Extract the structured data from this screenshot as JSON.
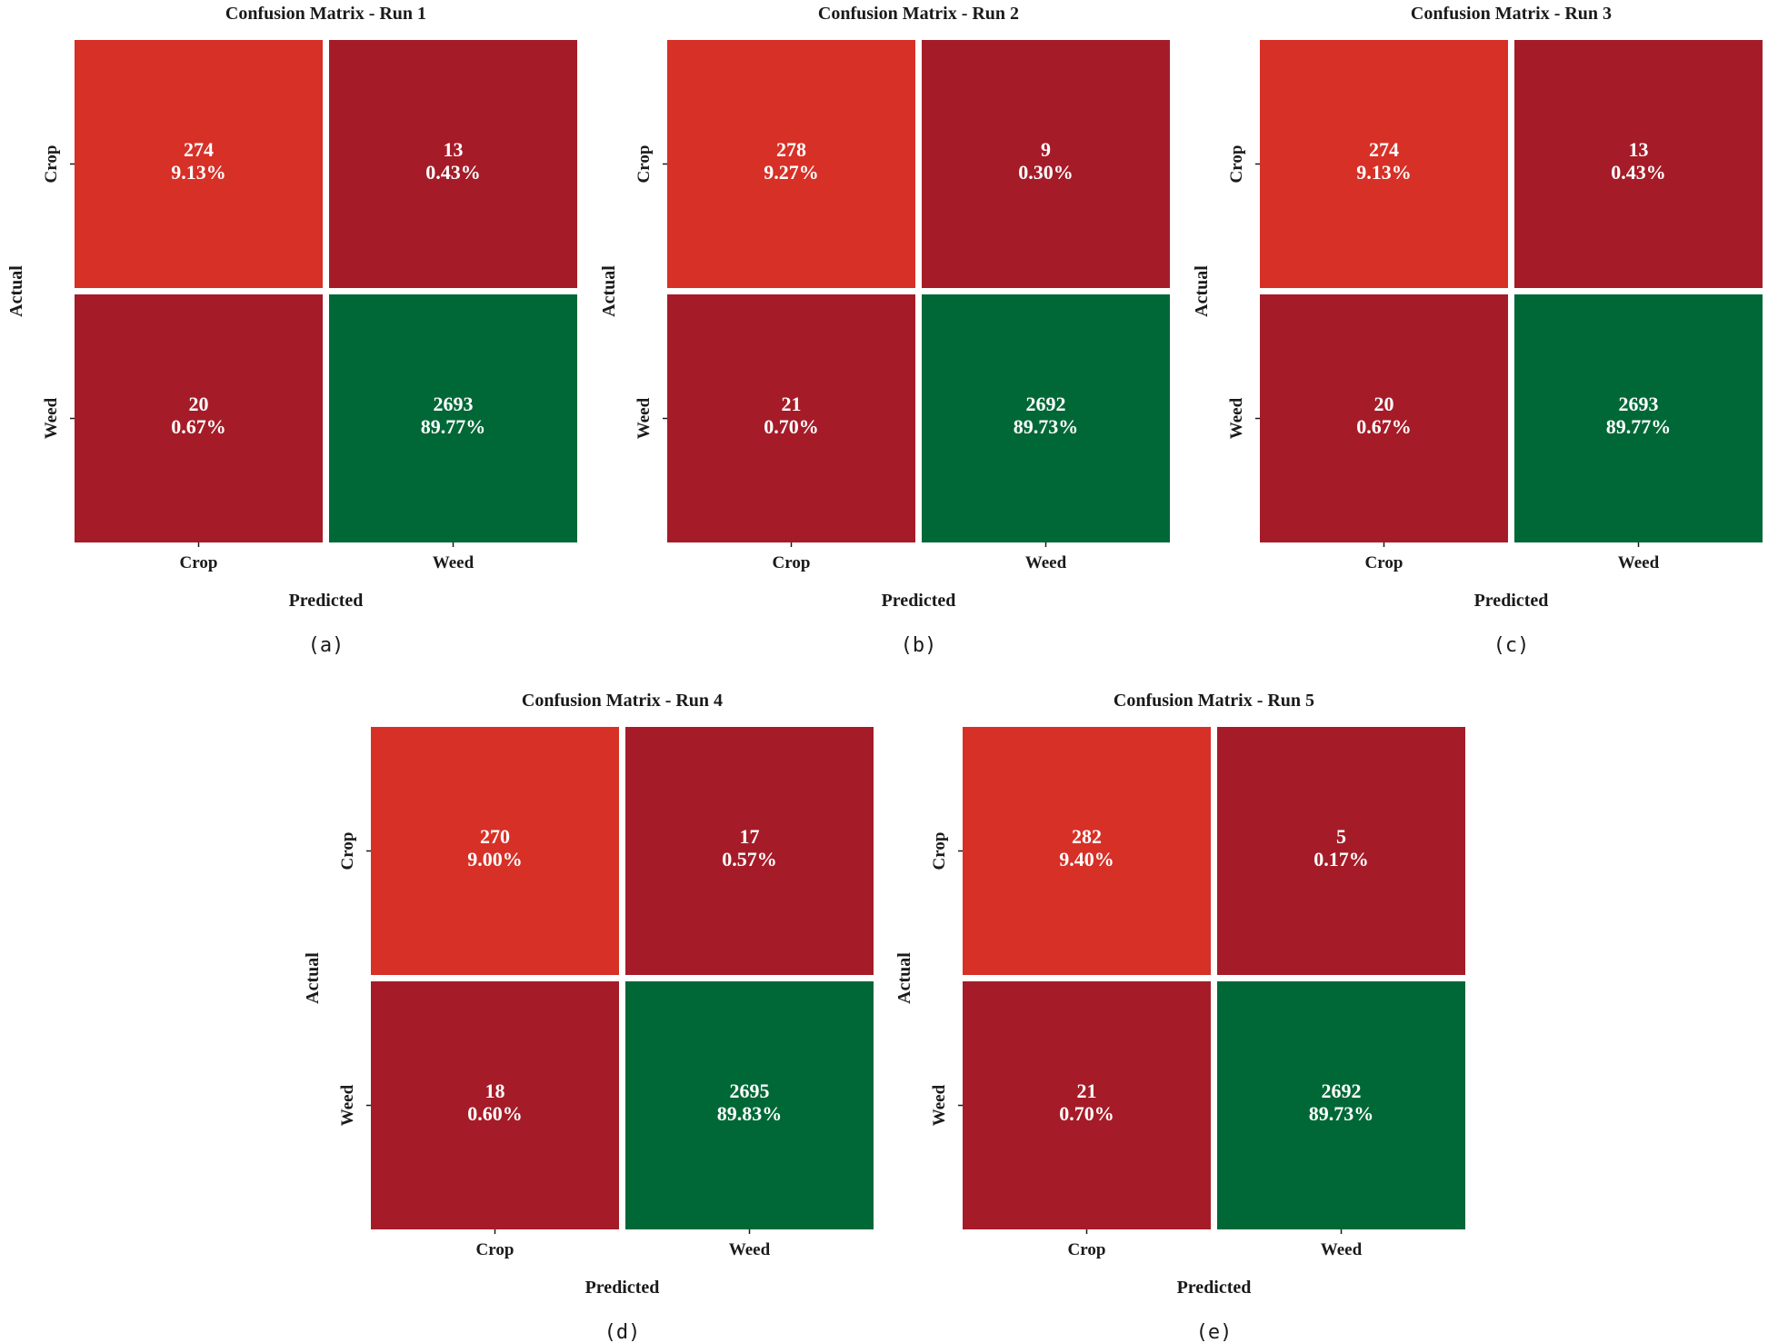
{
  "colors": {
    "correct_crop": "#d73027",
    "misclassified": "#a51c28",
    "correct_weed": "#006837",
    "cell_text": "#ffffff",
    "tick": "#1a1a1a"
  },
  "chart_data": [
    {
      "type": "heatmap",
      "caption": "(a)",
      "title": "Confusion Matrix - Run 1",
      "xlabel": "Predicted",
      "ylabel": "Actual",
      "x_categories": [
        "Crop",
        "Weed"
      ],
      "y_categories": [
        "Crop",
        "Weed"
      ],
      "values": [
        [
          274,
          13
        ],
        [
          20,
          2693
        ]
      ],
      "percent_labels": [
        [
          "9.13%",
          "0.43%"
        ],
        [
          "0.67%",
          "89.77%"
        ]
      ]
    },
    {
      "type": "heatmap",
      "caption": "(b)",
      "title": "Confusion Matrix - Run 2",
      "xlabel": "Predicted",
      "ylabel": "Actual",
      "x_categories": [
        "Crop",
        "Weed"
      ],
      "y_categories": [
        "Crop",
        "Weed"
      ],
      "values": [
        [
          278,
          9
        ],
        [
          21,
          2692
        ]
      ],
      "percent_labels": [
        [
          "9.27%",
          "0.30%"
        ],
        [
          "0.70%",
          "89.73%"
        ]
      ]
    },
    {
      "type": "heatmap",
      "caption": "(c)",
      "title": "Confusion Matrix - Run 3",
      "xlabel": "Predicted",
      "ylabel": "Actual",
      "x_categories": [
        "Crop",
        "Weed"
      ],
      "y_categories": [
        "Crop",
        "Weed"
      ],
      "values": [
        [
          274,
          13
        ],
        [
          20,
          2693
        ]
      ],
      "percent_labels": [
        [
          "9.13%",
          "0.43%"
        ],
        [
          "0.67%",
          "89.77%"
        ]
      ]
    },
    {
      "type": "heatmap",
      "caption": "(d)",
      "title": "Confusion Matrix - Run 4",
      "xlabel": "Predicted",
      "ylabel": "Actual",
      "x_categories": [
        "Crop",
        "Weed"
      ],
      "y_categories": [
        "Crop",
        "Weed"
      ],
      "values": [
        [
          270,
          17
        ],
        [
          18,
          2695
        ]
      ],
      "percent_labels": [
        [
          "9.00%",
          "0.57%"
        ],
        [
          "0.60%",
          "89.83%"
        ]
      ]
    },
    {
      "type": "heatmap",
      "caption": "(e)",
      "title": "Confusion Matrix - Run 5",
      "xlabel": "Predicted",
      "ylabel": "Actual",
      "x_categories": [
        "Crop",
        "Weed"
      ],
      "y_categories": [
        "Crop",
        "Weed"
      ],
      "values": [
        [
          282,
          5
        ],
        [
          21,
          2692
        ]
      ],
      "percent_labels": [
        [
          "9.40%",
          "0.17%"
        ],
        [
          "0.70%",
          "89.73%"
        ]
      ]
    }
  ]
}
